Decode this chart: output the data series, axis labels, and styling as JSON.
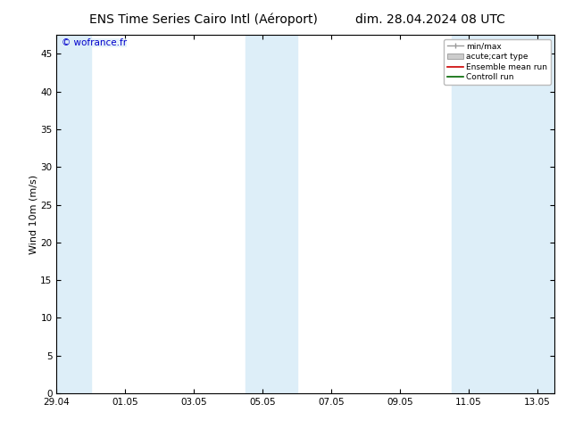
{
  "title_left": "ENS Time Series Cairo Intl (Aéroport)",
  "title_right": "dim. 28.04.2024 08 UTC",
  "ylabel": "Wind 10m (m/s)",
  "watermark": "© wofrance.fr",
  "x_tick_labels": [
    "29.04",
    "01.05",
    "03.05",
    "05.05",
    "07.05",
    "09.05",
    "11.05",
    "13.05"
  ],
  "ylim": [
    0,
    47.5
  ],
  "yticks": [
    0,
    5,
    10,
    15,
    20,
    25,
    30,
    35,
    40,
    45
  ],
  "xlim_days": [
    0.0,
    14.5
  ],
  "shaded_bands": [
    {
      "x_start": 0.0,
      "x_end": 1.0,
      "color": "#ddeef8"
    },
    {
      "x_start": 5.5,
      "x_end": 7.0,
      "color": "#ddeef8"
    },
    {
      "x_start": 11.5,
      "x_end": 14.5,
      "color": "#ddeef8"
    }
  ],
  "legend_items": [
    {
      "label": "min/max",
      "color": "#999999",
      "type": "errorbar"
    },
    {
      "label": "acute;cart type",
      "color": "#cccccc",
      "type": "box"
    },
    {
      "label": "Ensemble mean run",
      "color": "#cc0000",
      "type": "line"
    },
    {
      "label": "Controll run",
      "color": "#006600",
      "type": "line"
    }
  ],
  "background_color": "#ffffff",
  "plot_bg_color": "#ffffff",
  "grid_color": "#dddddd",
  "title_fontsize": 10,
  "tick_fontsize": 7.5,
  "ylabel_fontsize": 8,
  "watermark_fontsize": 7.5,
  "legend_fontsize": 6.5
}
